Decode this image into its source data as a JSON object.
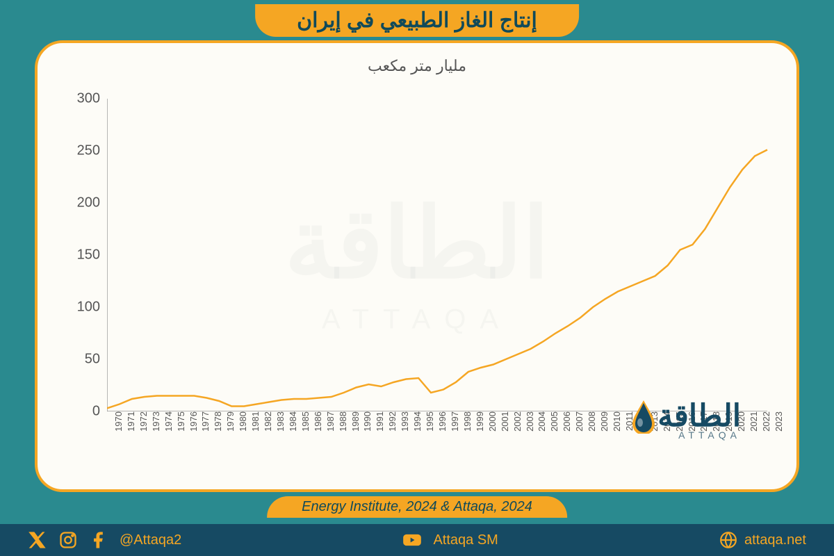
{
  "header": {
    "title": "إنتاج الغاز الطبيعي في إيران"
  },
  "chart": {
    "type": "line",
    "subtitle": "مليار متر مكعب",
    "background_color": "#fdfcf7",
    "panel_border_color": "#f5a623",
    "panel_border_radius": 40,
    "line_color": "#f5a623",
    "line_width": 2.5,
    "axis_color": "#888888",
    "label_color": "#555555",
    "ylabel_fontsize": 20,
    "xlabel_fontsize": 13,
    "subtitle_fontsize": 22,
    "ylim": [
      0,
      300
    ],
    "ytick_step": 50,
    "yticks": [
      0,
      50,
      100,
      150,
      200,
      250,
      300
    ],
    "x_categories": [
      "1970",
      "1971",
      "1972",
      "1973",
      "1974",
      "1975",
      "1976",
      "1977",
      "1978",
      "1979",
      "1980",
      "1981",
      "1982",
      "1983",
      "1984",
      "1985",
      "1986",
      "1987",
      "1988",
      "1989",
      "1990",
      "1991",
      "1992",
      "1993",
      "1994",
      "1995",
      "1996",
      "1997",
      "1998",
      "1999",
      "2000",
      "2001",
      "2002",
      "2003",
      "2004",
      "2005",
      "2006",
      "2007",
      "2008",
      "2009",
      "2010",
      "2011",
      "2012",
      "2013",
      "2014",
      "2015",
      "2016",
      "2017",
      "2018",
      "2019",
      "2020",
      "2021",
      "2022",
      "2023"
    ],
    "values": [
      3,
      7,
      12,
      14,
      15,
      15,
      15,
      15,
      13,
      10,
      5,
      5,
      7,
      9,
      11,
      12,
      12,
      13,
      14,
      18,
      23,
      26,
      24,
      28,
      31,
      32,
      18,
      21,
      28,
      38,
      42,
      45,
      50,
      55,
      60,
      67,
      75,
      82,
      90,
      100,
      108,
      115,
      120,
      125,
      130,
      140,
      155,
      160,
      175,
      195,
      215,
      232,
      245,
      251
    ],
    "watermark_main": "الطاقة",
    "watermark_sub": "ATTAQA"
  },
  "source": {
    "label": "Energy Institute, 2024 & Attaqa, 2024"
  },
  "logo": {
    "text": "الطاقة",
    "sub": "ATTAQA"
  },
  "footer": {
    "handle": "@Attaqa2",
    "youtube": "Attaqa SM",
    "website": "attaqa.net"
  },
  "colors": {
    "page_bg": "#2a8a8f",
    "banner_bg": "#f5a623",
    "banner_text": "#104a5a",
    "footer_bg": "#164a63",
    "footer_text": "#f5a623"
  }
}
